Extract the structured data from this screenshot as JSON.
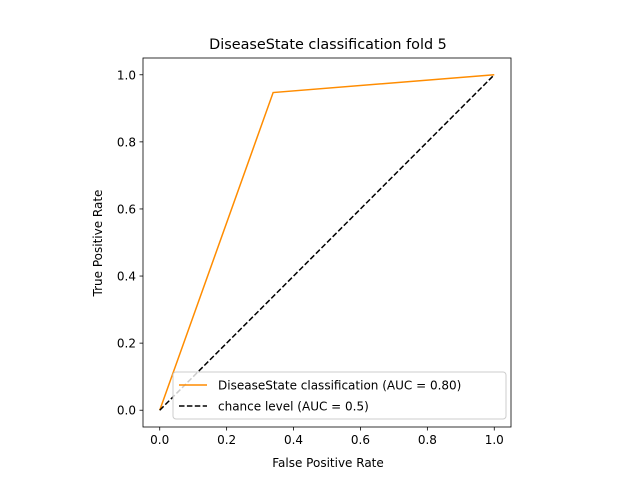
{
  "chart_data": {
    "type": "line",
    "title": "DiseaseState classification fold 5",
    "xlabel": "False Positive Rate",
    "ylabel": "True Positive Rate",
    "xlim": [
      -0.05,
      1.05
    ],
    "ylim": [
      -0.05,
      1.05
    ],
    "grid": false,
    "legend_position": "lower-right",
    "x_ticks": [
      "0.0",
      "0.2",
      "0.4",
      "0.6",
      "0.8",
      "1.0"
    ],
    "y_ticks": [
      "0.0",
      "0.2",
      "0.4",
      "0.6",
      "0.8",
      "1.0"
    ],
    "series": [
      {
        "name": "DiseaseState classification (AUC = 0.80)",
        "color": "#ff8c00",
        "style": "solid",
        "x": [
          0.0,
          0.339,
          1.0
        ],
        "y": [
          0.0,
          0.947,
          1.0
        ]
      },
      {
        "name": "chance level (AUC = 0.5)",
        "color": "#000000",
        "style": "dashed",
        "x": [
          0.0,
          1.0
        ],
        "y": [
          0.0,
          1.0
        ]
      }
    ]
  }
}
